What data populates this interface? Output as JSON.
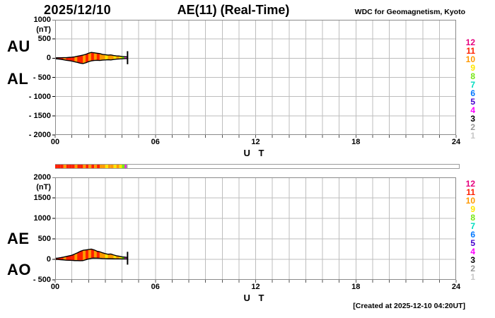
{
  "header": {
    "date": "2025/12/10",
    "title": "AE(11) (Real-Time)",
    "source": "WDC for Geomagnetism, Kyoto"
  },
  "footer": {
    "created": "[Created at 2025-12-10 04:20UT]"
  },
  "stations": {
    "legend_counts": [
      "12",
      "11",
      "10",
      "9",
      "8",
      "7",
      "6",
      "5",
      "4",
      "3",
      "2",
      "1"
    ],
    "colors": {
      "12": "#e6007e",
      "11": "#ff2000",
      "10": "#ff9900",
      "9": "#ffe600",
      "8": "#77e617",
      "7": "#00ddc0",
      "6": "#0077ff",
      "5": "#4400cc",
      "4": "#ff00ff",
      "3": "#000000",
      "2": "#999999",
      "1": "#c8c8c8"
    },
    "interval_counts": [
      11,
      11,
      11,
      10,
      11,
      11,
      11,
      10,
      11,
      11,
      10,
      11,
      10,
      11,
      10,
      11,
      10,
      10,
      9,
      10,
      10,
      9,
      10,
      9,
      8,
      4,
      2
    ]
  },
  "chart_data": [
    {
      "type": "area",
      "name": "AU/AL real-time auroral electrojet envelope",
      "left_labels": [
        "AU",
        "AL"
      ],
      "unit_label": "(nT)",
      "xlabel": "U T",
      "xlim": [
        0,
        24
      ],
      "ylim": [
        -2000,
        1000
      ],
      "yticks": [
        1000,
        500,
        0,
        -500,
        -1000,
        -1500,
        -2000
      ],
      "ytick_labels": [
        "1000",
        "500",
        "0",
        "- 500",
        "- 1000",
        "- 1500",
        "- 2000"
      ],
      "xticks": [
        0,
        6,
        12,
        18,
        24
      ],
      "xtick_labels": [
        "00",
        "06",
        "12",
        "18",
        "24"
      ],
      "grid_step_hours": 1,
      "x_hours": [
        0,
        0.167,
        0.333,
        0.5,
        0.667,
        0.833,
        1,
        1.167,
        1.333,
        1.5,
        1.667,
        1.833,
        2,
        2.167,
        2.333,
        2.5,
        2.667,
        2.833,
        3,
        3.167,
        3.333,
        3.5,
        3.667,
        3.833,
        4,
        4.167,
        4.25,
        4.333
      ],
      "series": [
        {
          "name": "AU",
          "values": [
            10,
            12,
            12,
            15,
            15,
            20,
            25,
            35,
            50,
            65,
            80,
            100,
            130,
            150,
            140,
            130,
            120,
            100,
            90,
            80,
            85,
            70,
            60,
            55,
            45,
            40,
            38,
            35
          ]
        },
        {
          "name": "AL",
          "values": [
            -15,
            -20,
            -30,
            -40,
            -55,
            -65,
            -75,
            -95,
            -110,
            -130,
            -140,
            -120,
            -90,
            -70,
            -60,
            -55,
            -60,
            -50,
            -45,
            -40,
            -45,
            -35,
            -25,
            -20,
            -15,
            -12,
            -11,
            -10
          ]
        }
      ]
    },
    {
      "type": "area",
      "name": "AE/AO real-time auroral electrojet envelope",
      "left_labels": [
        "AE",
        "AO"
      ],
      "unit_label": "(nT)",
      "xlabel": "U T",
      "xlim": [
        0,
        24
      ],
      "ylim": [
        -500,
        2000
      ],
      "yticks": [
        2000,
        1500,
        1000,
        500,
        0,
        -500
      ],
      "ytick_labels": [
        "2000",
        "1500",
        "1000",
        "500",
        "0",
        "- 500"
      ],
      "xticks": [
        0,
        6,
        12,
        18,
        24
      ],
      "xtick_labels": [
        "00",
        "06",
        "12",
        "18",
        "24"
      ],
      "grid_step_hours": 1,
      "x_hours": [
        0,
        0.167,
        0.333,
        0.5,
        0.667,
        0.833,
        1,
        1.167,
        1.333,
        1.5,
        1.667,
        1.833,
        2,
        2.167,
        2.333,
        2.5,
        2.667,
        2.833,
        3,
        3.167,
        3.333,
        3.5,
        3.667,
        3.833,
        4,
        4.167,
        4.25,
        4.333
      ],
      "series": [
        {
          "name": "AE",
          "values": [
            25,
            32,
            42,
            55,
            70,
            85,
            100,
            130,
            160,
            195,
            220,
            230,
            240,
            250,
            230,
            200,
            185,
            160,
            140,
            125,
            130,
            108,
            88,
            76,
            62,
            54,
            50,
            46
          ]
        },
        {
          "name": "AO",
          "values": [
            -3,
            -4,
            -9,
            -13,
            -20,
            -23,
            -25,
            -30,
            -30,
            -33,
            -30,
            -10,
            10,
            25,
            30,
            28,
            25,
            20,
            18,
            15,
            15,
            13,
            12,
            12,
            10,
            10,
            10,
            9
          ]
        }
      ]
    }
  ]
}
